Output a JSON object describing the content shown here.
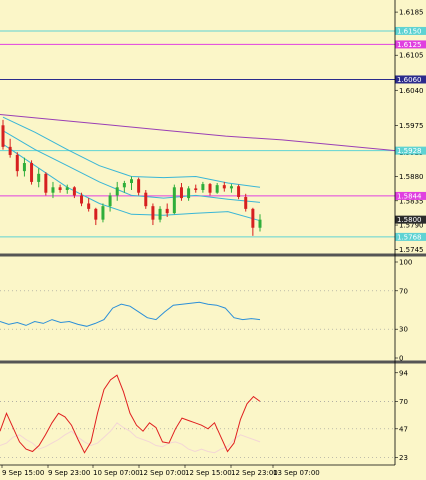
{
  "colors": {
    "background": "#fbf6c8",
    "cyan_level": "#5fd3d3",
    "magenta_level": "#e040e0",
    "navy_level": "#2b2b8c",
    "purple_ma": "#9a3fb5",
    "bollinger": "#3ab6d6",
    "bull_candle": "#2fae3a",
    "bear_candle": "#d62020",
    "rsi": "#2b8fd8",
    "stoch_main": "#e02020",
    "stoch_signal": "#f3d6d6",
    "separator": "#555555",
    "price_tag": "#2b2b2b",
    "dotted_level": "#999999"
  },
  "chart_data": [
    {
      "type": "candlestick",
      "panel": "price",
      "y_ticks": [
        "1.6185",
        "1.6150",
        "1.6125",
        "1.6105",
        "1.6060",
        "1.6040",
        "1.5975",
        "1.5925",
        "1.5880",
        "1.5844",
        "1.5835",
        "1.5800",
        "1.5790",
        "1.5768",
        "1.5745"
      ],
      "ylim": [
        1.574,
        1.62
      ],
      "current_price": "1.5800",
      "levels": [
        {
          "value": 1.615,
          "label": "1.6150",
          "color": "cyan_level"
        },
        {
          "value": 1.6125,
          "label": "1.6125",
          "color": "magenta_level"
        },
        {
          "value": 1.606,
          "label": "1.6060",
          "color": "navy_level"
        },
        {
          "value": 1.5928,
          "label": "1.5928",
          "color": "cyan_level"
        },
        {
          "value": 1.5844,
          "label": "1.5844",
          "color": "magenta_level"
        },
        {
          "value": 1.5768,
          "label": "1.5768",
          "color": "cyan_level"
        }
      ],
      "ma_line": [
        1.5995,
        1.5985,
        1.5975,
        1.5965,
        1.5955,
        1.5948,
        1.5938,
        1.5928
      ],
      "bb_upper": [
        1.599,
        1.5962,
        1.593,
        1.59,
        1.588,
        1.5878,
        1.588,
        1.5868,
        1.586
      ],
      "bb_mid": [
        1.5965,
        1.593,
        1.59,
        1.587,
        1.5845,
        1.584,
        1.5845,
        1.5838,
        1.5832
      ],
      "bb_lower": [
        1.594,
        1.59,
        1.586,
        1.583,
        1.581,
        1.5808,
        1.5812,
        1.5815,
        1.5798
      ],
      "candles": [
        [
          1.5975,
          1.5985,
          1.593,
          1.5935
        ],
        [
          1.5935,
          1.595,
          1.5915,
          1.592
        ],
        [
          1.592,
          1.5925,
          1.588,
          1.589
        ],
        [
          1.589,
          1.5915,
          1.588,
          1.5905
        ],
        [
          1.5905,
          1.591,
          1.5865,
          1.587
        ],
        [
          1.587,
          1.5895,
          1.586,
          1.5885
        ],
        [
          1.5885,
          1.5888,
          1.5845,
          1.585
        ],
        [
          1.585,
          1.587,
          1.584,
          1.586
        ],
        [
          1.586,
          1.5865,
          1.585,
          1.5855
        ],
        [
          1.5855,
          1.5865,
          1.5848,
          1.586
        ],
        [
          1.586,
          1.5862,
          1.584,
          1.5845
        ],
        [
          1.5845,
          1.585,
          1.5825,
          1.583
        ],
        [
          1.583,
          1.584,
          1.5815,
          1.582
        ],
        [
          1.582,
          1.5822,
          1.579,
          1.58
        ],
        [
          1.58,
          1.583,
          1.5795,
          1.5825
        ],
        [
          1.5825,
          1.585,
          1.5815,
          1.5845
        ],
        [
          1.5845,
          1.587,
          1.5835,
          1.586
        ],
        [
          1.586,
          1.5872,
          1.585,
          1.5868
        ],
        [
          1.5868,
          1.588,
          1.5855,
          1.5875
        ],
        [
          1.5875,
          1.5878,
          1.5845,
          1.585
        ],
        [
          1.585,
          1.5855,
          1.582,
          1.5825
        ],
        [
          1.5825,
          1.583,
          1.579,
          1.58
        ],
        [
          1.58,
          1.5825,
          1.5795,
          1.582
        ],
        [
          1.582,
          1.583,
          1.5805,
          1.5812
        ],
        [
          1.5812,
          1.5865,
          1.581,
          1.586
        ],
        [
          1.586,
          1.5868,
          1.5835,
          1.584
        ],
        [
          1.584,
          1.5862,
          1.5835,
          1.5858
        ],
        [
          1.5858,
          1.5865,
          1.585,
          1.5855
        ],
        [
          1.5855,
          1.587,
          1.585,
          1.5866
        ],
        [
          1.5866,
          1.5868,
          1.5845,
          1.585
        ],
        [
          1.585,
          1.5868,
          1.5848,
          1.5864
        ],
        [
          1.5864,
          1.587,
          1.5852,
          1.5858
        ],
        [
          1.5858,
          1.5866,
          1.585,
          1.5862
        ],
        [
          1.5862,
          1.5865,
          1.5838,
          1.5842
        ],
        [
          1.5842,
          1.5848,
          1.5815,
          1.582
        ],
        [
          1.582,
          1.5822,
          1.577,
          1.5785
        ],
        [
          1.5785,
          1.581,
          1.5778,
          1.58
        ]
      ]
    },
    {
      "type": "line",
      "panel": "rsi",
      "y_ticks": [
        "100",
        "70",
        "30",
        "0"
      ],
      "ylim": [
        0,
        100
      ],
      "levels": [
        70,
        30
      ],
      "values": [
        38,
        35,
        37,
        34,
        38,
        36,
        40,
        37,
        38,
        35,
        33,
        36,
        40,
        52,
        56,
        54,
        48,
        42,
        40,
        48,
        55,
        56,
        57,
        58,
        56,
        55,
        52,
        42,
        40,
        41,
        40
      ]
    },
    {
      "type": "line",
      "panel": "stochastic",
      "y_ticks": [
        "94",
        "70",
        "47",
        "23"
      ],
      "ylim": [
        0,
        100
      ],
      "levels": [
        70,
        47,
        23
      ],
      "main": [
        45,
        60,
        48,
        36,
        30,
        28,
        33,
        42,
        52,
        60,
        57,
        50,
        38,
        27,
        36,
        60,
        80,
        88,
        92,
        78,
        60,
        50,
        45,
        52,
        48,
        36,
        35,
        47,
        56,
        54,
        52,
        50,
        47,
        52,
        40,
        28,
        35,
        55,
        68,
        74,
        70
      ],
      "signal": [
        33,
        35,
        40,
        42,
        38,
        35,
        30,
        32,
        35,
        38,
        42,
        45,
        40,
        36,
        33,
        35,
        40,
        45,
        52,
        48,
        45,
        40,
        38,
        36,
        33,
        32,
        35,
        36,
        34,
        30,
        28,
        30,
        28,
        27,
        30,
        32,
        38,
        42,
        40,
        38,
        36
      ]
    }
  ],
  "x_axis": {
    "labels": [
      "9 Sep 15:00",
      "9 Sep 23:00",
      "10 Sep 07:00",
      "12 Sep 07:00",
      "12 Sep 15:00",
      "12 Sep 23:00",
      "13 Sep 07:00"
    ]
  }
}
